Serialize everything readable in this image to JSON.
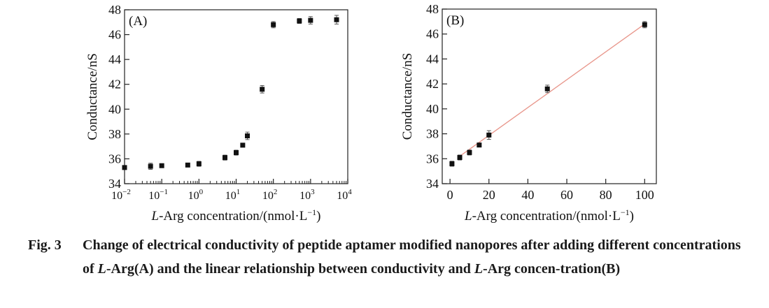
{
  "chart_data": [
    {
      "type": "scatter",
      "panel_label": "(A)",
      "xscale": "log",
      "xlim": [
        0.01,
        10000
      ],
      "ylim": [
        34,
        48
      ],
      "xtick_values": [
        0.01,
        0.1,
        1,
        10,
        100,
        1000,
        10000
      ],
      "xtick_labels": [
        {
          "base": "10",
          "exp": "−2"
        },
        {
          "base": "10",
          "exp": "−1"
        },
        {
          "base": "10",
          "exp": "0"
        },
        {
          "base": "10",
          "exp": "1"
        },
        {
          "base": "10",
          "exp": "2"
        },
        {
          "base": "10",
          "exp": "3"
        },
        {
          "base": "10",
          "exp": "4"
        }
      ],
      "yticks": [
        34,
        36,
        38,
        40,
        42,
        44,
        46,
        48
      ],
      "xlabel_prefix": "L",
      "xlabel_rest": "-Arg concentration/(nmol·L",
      "xlabel_exp": "−1",
      "xlabel_close": ")",
      "ylabel": "Conductance/nS",
      "points": [
        {
          "x": 0.01,
          "y": 35.3,
          "err": 0.15
        },
        {
          "x": 0.05,
          "y": 35.4,
          "err": 0.25
        },
        {
          "x": 0.1,
          "y": 35.45,
          "err": 0.15
        },
        {
          "x": 0.5,
          "y": 35.5,
          "err": 0.1
        },
        {
          "x": 1,
          "y": 35.6,
          "err": 0.2
        },
        {
          "x": 5,
          "y": 36.1,
          "err": 0.2
        },
        {
          "x": 10,
          "y": 36.5,
          "err": 0.2
        },
        {
          "x": 15,
          "y": 37.1,
          "err": 0.1
        },
        {
          "x": 20,
          "y": 37.85,
          "err": 0.3
        },
        {
          "x": 50,
          "y": 41.6,
          "err": 0.3
        },
        {
          "x": 100,
          "y": 46.8,
          "err": 0.25
        },
        {
          "x": 500,
          "y": 47.1,
          "err": 0.2
        },
        {
          "x": 1000,
          "y": 47.15,
          "err": 0.3
        },
        {
          "x": 5000,
          "y": 47.2,
          "err": 0.35
        }
      ]
    },
    {
      "type": "scatter",
      "panel_label": "(B)",
      "xscale": "linear",
      "xlim": [
        -4,
        106
      ],
      "ylim": [
        34,
        48
      ],
      "xticks": [
        0,
        20,
        40,
        60,
        80,
        100
      ],
      "yticks": [
        34,
        36,
        38,
        40,
        42,
        44,
        46,
        48
      ],
      "xlabel_prefix": "L",
      "xlabel_rest": "-Arg concentration/(nmol·L",
      "xlabel_exp": "−1",
      "xlabel_close": ")",
      "ylabel": "Conductance/nS",
      "points": [
        {
          "x": 1,
          "y": 35.6,
          "err": 0.2
        },
        {
          "x": 5,
          "y": 36.1,
          "err": 0.2
        },
        {
          "x": 10,
          "y": 36.5,
          "err": 0.2
        },
        {
          "x": 15,
          "y": 37.1,
          "err": 0.1
        },
        {
          "x": 20,
          "y": 37.9,
          "err": 0.35
        },
        {
          "x": 50,
          "y": 41.6,
          "err": 0.3
        },
        {
          "x": 100,
          "y": 46.75,
          "err": 0.25
        }
      ],
      "fit_line": {
        "x": [
          5,
          100
        ],
        "y": [
          36.2,
          46.8
        ],
        "color": "#e8958a"
      }
    }
  ],
  "caption": {
    "number": "Fig. 3",
    "parts": [
      {
        "text": "Change of electrical conductivity of peptide aptamer modified nanopores after adding different concentrations of ",
        "italic": false
      },
      {
        "text": "L",
        "italic": true
      },
      {
        "text": "-Arg(A) and the linear relationship between conductivity and ",
        "italic": false
      },
      {
        "text": "L",
        "italic": true
      },
      {
        "text": "-Arg concen-tration(B)",
        "italic": false
      }
    ]
  }
}
